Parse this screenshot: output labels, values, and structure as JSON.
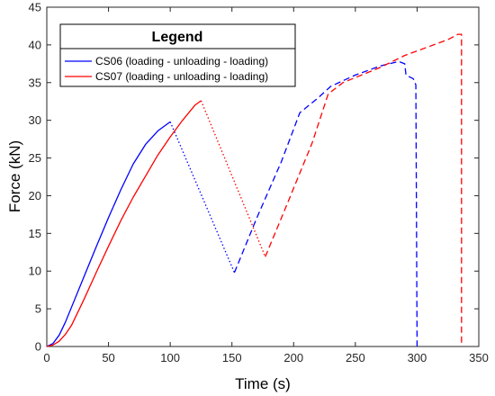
{
  "chart_data": {
    "type": "line",
    "title": "",
    "xlabel": "Time (s)",
    "ylabel": "Force (kN)",
    "xlim": [
      0,
      350
    ],
    "ylim": [
      0,
      45
    ],
    "xticks": [
      0,
      50,
      100,
      150,
      200,
      250,
      300,
      350
    ],
    "yticks": [
      0,
      5,
      10,
      15,
      20,
      25,
      30,
      35,
      40,
      45
    ],
    "grid": false,
    "legend": {
      "title": "Legend",
      "placement": "top-left"
    },
    "series": [
      {
        "name": "CS06 (loading - unloading - loading)",
        "color": "#0000ff",
        "segments": [
          {
            "style": "solid",
            "points": [
              [
                0,
                0
              ],
              [
                5,
                0.4
              ],
              [
                10,
                1.5
              ],
              [
                15,
                3.2
              ],
              [
                20,
                5.2
              ],
              [
                30,
                9.2
              ],
              [
                40,
                13.2
              ],
              [
                50,
                17.1
              ],
              [
                60,
                20.8
              ],
              [
                70,
                24.2
              ],
              [
                80,
                26.8
              ],
              [
                90,
                28.6
              ],
              [
                100,
                29.8
              ]
            ]
          },
          {
            "style": "dotted",
            "points": [
              [
                100,
                29.8
              ],
              [
                152,
                9.8
              ]
            ]
          },
          {
            "style": "dashed",
            "points": [
              [
                152,
                9.8
              ],
              [
                170,
                17
              ],
              [
                190,
                24.5
              ],
              [
                205,
                31
              ],
              [
                220,
                33
              ],
              [
                230,
                34.5
              ],
              [
                250,
                36
              ],
              [
                270,
                37.2
              ],
              [
                285,
                37.8
              ],
              [
                290,
                37.5
              ],
              [
                291,
                36
              ],
              [
                297,
                35.5
              ],
              [
                299,
                34.7
              ],
              [
                300,
                0
              ]
            ]
          }
        ]
      },
      {
        "name": "CS07 (loading - unloading - loading)",
        "color": "#ff0000",
        "segments": [
          {
            "style": "solid",
            "points": [
              [
                0,
                0
              ],
              [
                5,
                0.2
              ],
              [
                10,
                0.7
              ],
              [
                15,
                1.6
              ],
              [
                20,
                2.8
              ],
              [
                30,
                6.2
              ],
              [
                40,
                9.8
              ],
              [
                50,
                13.3
              ],
              [
                60,
                16.7
              ],
              [
                70,
                19.8
              ],
              [
                80,
                22.6
              ],
              [
                90,
                25.4
              ],
              [
                100,
                27.8
              ],
              [
                110,
                30
              ],
              [
                120,
                32
              ],
              [
                125,
                32.6
              ]
            ]
          },
          {
            "style": "dotted",
            "points": [
              [
                125,
                32.6
              ],
              [
                177,
                11.9
              ]
            ]
          },
          {
            "style": "dashed",
            "points": [
              [
                177,
                11.9
              ],
              [
                195,
                19
              ],
              [
                215,
                27
              ],
              [
                228,
                33.5
              ],
              [
                240,
                35
              ],
              [
                255,
                36
              ],
              [
                270,
                37
              ],
              [
                290,
                38.6
              ],
              [
                310,
                39.8
              ],
              [
                325,
                40.7
              ],
              [
                333,
                41.4
              ],
              [
                336,
                41.4
              ],
              [
                336,
                0.3
              ]
            ]
          }
        ]
      }
    ]
  }
}
